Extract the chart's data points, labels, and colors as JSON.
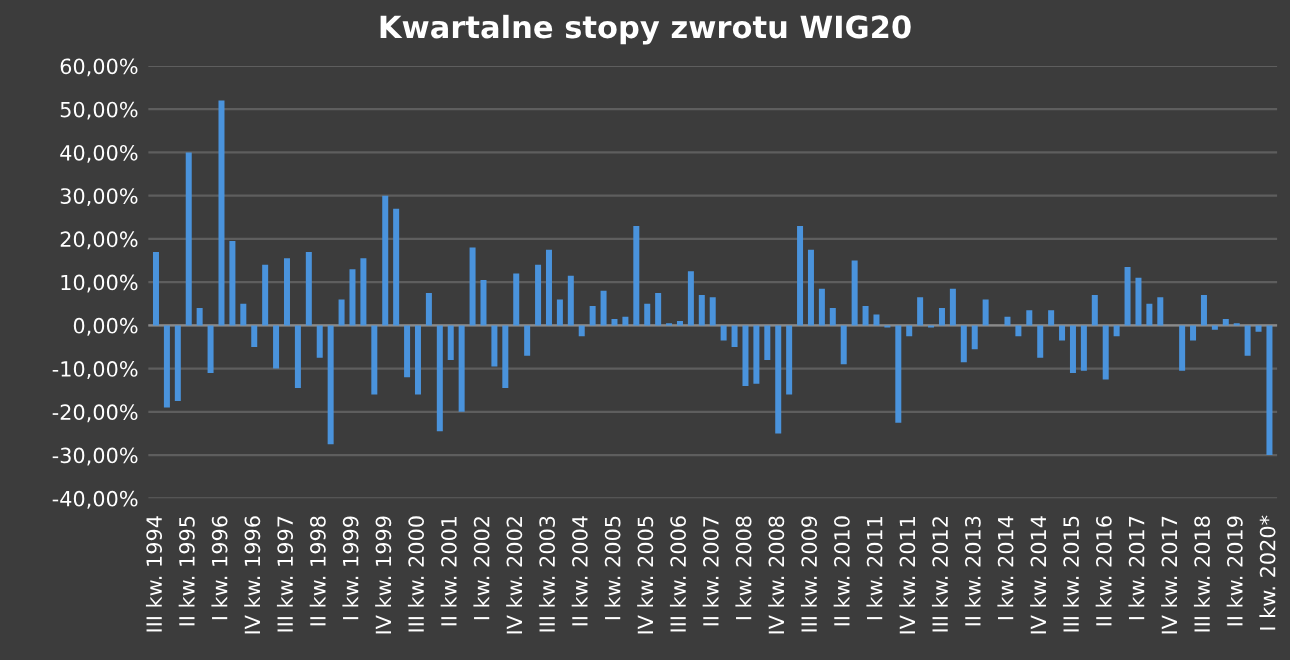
{
  "chart_data": {
    "type": "bar",
    "title": "Kwartalne stopy zwrotu WIG20",
    "categories": [
      "III kw. 1994",
      null,
      null,
      "II kw. 1995",
      null,
      null,
      "I kw. 1996",
      null,
      null,
      "IV kw. 1996",
      null,
      null,
      "III kw. 1997",
      null,
      null,
      "II kw. 1998",
      null,
      null,
      "I kw. 1999",
      null,
      null,
      "IV kw. 1999",
      null,
      null,
      "III kw. 2000",
      null,
      null,
      "II kw. 2001",
      null,
      null,
      "I kw. 2002",
      null,
      null,
      "IV kw. 2002",
      null,
      null,
      "III kw. 2003",
      null,
      null,
      "II kw. 2004",
      null,
      null,
      "I kw. 2005",
      null,
      null,
      "IV kw. 2005",
      null,
      null,
      "III kw. 2006",
      null,
      null,
      "II kw. 2007",
      null,
      null,
      "I kw. 2008",
      null,
      null,
      "IV kw. 2008",
      null,
      null,
      "III kw. 2009",
      null,
      null,
      "II kw. 2010",
      null,
      null,
      "I kw. 2011",
      null,
      null,
      "IV kw. 2011",
      null,
      null,
      "III kw. 2012",
      null,
      null,
      "II kw. 2013",
      null,
      null,
      "I kw. 2014",
      null,
      null,
      "IV kw. 2014",
      null,
      null,
      "III kw. 2015",
      null,
      null,
      "II kw. 2016",
      null,
      null,
      "I kw. 2017",
      null,
      null,
      "IV kw. 2017",
      null,
      null,
      "III kw. 2018",
      null,
      null,
      "II kw. 2019",
      null,
      null,
      "I kw. 2020*"
    ],
    "values": [
      17,
      -19,
      -17.5,
      40,
      4,
      -11,
      52,
      19.5,
      5,
      -5,
      14,
      -10,
      15.5,
      -14.5,
      17,
      -7.5,
      -27.5,
      6,
      13,
      15.5,
      -16,
      30,
      27,
      -12,
      -16,
      7.5,
      -24.5,
      -8,
      -20,
      18,
      10.5,
      -9.5,
      -14.5,
      12,
      -7,
      14,
      17.5,
      6,
      11.5,
      -2.5,
      4.5,
      8,
      1.5,
      2,
      23,
      5,
      7.5,
      0.5,
      1,
      12.5,
      7,
      6.5,
      -3.5,
      -5,
      -14,
      -13.5,
      -8,
      -25,
      -16,
      23,
      17.5,
      8.5,
      4,
      -9,
      15,
      4.5,
      2.5,
      -0.5,
      -22.5,
      -2.5,
      6.5,
      -0.5,
      4,
      8.5,
      -8.5,
      -5.5,
      6,
      0,
      2,
      -2.5,
      3.5,
      -7.5,
      3.5,
      -3.5,
      -11,
      -10.5,
      7,
      -12.5,
      -2.5,
      13.5,
      11,
      5,
      6.5,
      0,
      -10.5,
      -3.5,
      7,
      -1,
      1.5,
      0.5,
      -7,
      -1.5,
      -30
    ],
    "color": "#4a93dc",
    "ylim": [
      -40,
      60
    ],
    "yticks": [
      {
        "value": -40,
        "label": "-40,00%"
      },
      {
        "value": -30,
        "label": "-30,00%"
      },
      {
        "value": -20,
        "label": "-20,00%"
      },
      {
        "value": -10,
        "label": "-10,00%"
      },
      {
        "value": 0,
        "label": "0,00%"
      },
      {
        "value": 10,
        "label": "10,00%"
      },
      {
        "value": 20,
        "label": "20,00%"
      },
      {
        "value": 30,
        "label": "30,00%"
      },
      {
        "value": 40,
        "label": "40,00%"
      },
      {
        "value": 50,
        "label": "50,00%"
      },
      {
        "value": 60,
        "label": "60,00%"
      }
    ],
    "grid": "y"
  }
}
